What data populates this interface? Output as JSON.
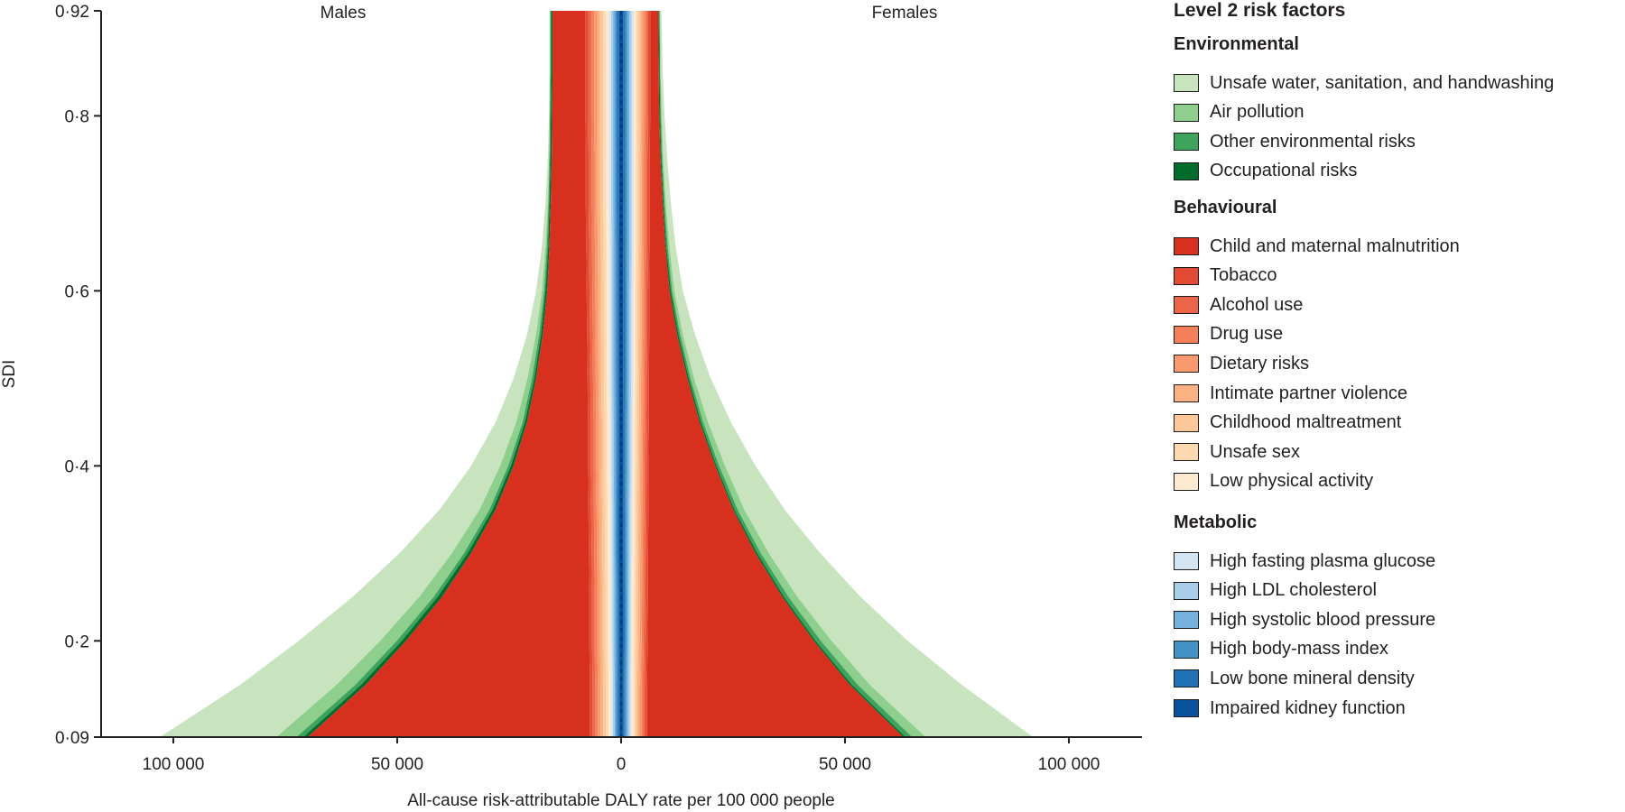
{
  "chart_data": {
    "type": "area",
    "subtype": "mirrored stacked area (population-pyramid style)",
    "left_panel_label": "Males",
    "right_panel_label": "Females",
    "xlabel": "All-cause risk-attributable DALY rate per 100 000 people",
    "ylabel": "SDI",
    "x_ticks": [
      "100 000",
      "50 000",
      "0",
      "50 000",
      "100 000"
    ],
    "x_tick_values": [
      -100000,
      -50000,
      0,
      50000,
      100000
    ],
    "xlim": [
      -113000,
      113000
    ],
    "y_ticks": [
      "0·09",
      "0·2",
      "0·4",
      "0·6",
      "0·8",
      "0·92"
    ],
    "y_tick_values": [
      0.09,
      0.2,
      0.4,
      0.6,
      0.8,
      0.92
    ],
    "ylim": [
      0.09,
      0.92
    ],
    "grid": false,
    "legend_position": "right",
    "sdi": [
      0.09,
      0.15,
      0.2,
      0.25,
      0.3,
      0.35,
      0.4,
      0.45,
      0.5,
      0.55,
      0.6,
      0.65,
      0.7,
      0.75,
      0.8,
      0.85,
      0.92
    ],
    "envelope_layers": {
      "note": "cumulative outer edges of grouped layers, DALY rate per 100 000",
      "males": {
        "metabolic_edge": [
          2200,
          2200,
          2300,
          2300,
          2400,
          2400,
          2500,
          2500,
          2600,
          2600,
          2600,
          2600,
          2700,
          2700,
          2700,
          2700,
          2700
        ],
        "behavioural_edge": [
          7000,
          7000,
          7100,
          7100,
          7200,
          7300,
          7400,
          7400,
          7500,
          7600,
          7700,
          7800,
          7900,
          7900,
          8000,
          8000,
          8000
        ],
        "malnutrition_edge": [
          70000,
          57000,
          48000,
          40000,
          33500,
          28000,
          24000,
          21000,
          19000,
          17500,
          16500,
          16000,
          15700,
          15500,
          15400,
          15300,
          15300
        ],
        "occupational_edge": [
          71000,
          58000,
          49000,
          41000,
          34300,
          28700,
          24600,
          21500,
          19400,
          17900,
          16900,
          16300,
          16000,
          15800,
          15700,
          15600,
          15600
        ],
        "other_env_edge": [
          72500,
          59300,
          50100,
          41900,
          35100,
          29400,
          25200,
          22000,
          19900,
          18300,
          17200,
          16600,
          16200,
          16000,
          15900,
          15800,
          15800
        ],
        "air_pollution_edge": [
          77000,
          63500,
          53800,
          45100,
          37800,
          31600,
          27000,
          23400,
          20900,
          19000,
          17700,
          16900,
          16400,
          16100,
          16000,
          15900,
          15900
        ],
        "water_edge": [
          103000,
          85000,
          72000,
          60000,
          49500,
          40500,
          33500,
          28000,
          24000,
          21000,
          19000,
          17700,
          16900,
          16400,
          16100,
          16000,
          16000
        ]
      },
      "females": {
        "metabolic_edge": [
          2300,
          2300,
          2400,
          2400,
          2500,
          2500,
          2600,
          2600,
          2700,
          2700,
          2700,
          2800,
          2800,
          2800,
          2800,
          2800,
          2800
        ],
        "behavioural_edge": [
          5800,
          5800,
          5900,
          6000,
          6000,
          6100,
          6100,
          6200,
          6200,
          6300,
          6300,
          6400,
          6400,
          6400,
          6500,
          6500,
          6500
        ],
        "malnutrition_edge": [
          63000,
          51000,
          43000,
          36000,
          30000,
          25000,
          21000,
          17500,
          14800,
          12500,
          10800,
          9900,
          9300,
          8800,
          8500,
          8400,
          8300
        ],
        "occupational_edge": [
          63500,
          51500,
          43400,
          36400,
          30400,
          25300,
          21300,
          17800,
          15100,
          12800,
          11100,
          10100,
          9500,
          9000,
          8700,
          8600,
          8500
        ],
        "other_env_edge": [
          65000,
          52800,
          44600,
          37400,
          31200,
          26000,
          21900,
          18300,
          15500,
          13200,
          11400,
          10400,
          9700,
          9200,
          8900,
          8700,
          8600
        ],
        "air_pollution_edge": [
          68000,
          55500,
          47000,
          39400,
          33000,
          27500,
          23200,
          19400,
          16300,
          13800,
          11900,
          10800,
          10000,
          9400,
          9100,
          8800,
          8700
        ],
        "water_edge": [
          92000,
          76000,
          64000,
          53500,
          44500,
          36500,
          30000,
          24500,
          20000,
          16500,
          13800,
          12200,
          11100,
          10300,
          9700,
          9300,
          9000
        ]
      }
    },
    "series": [
      {
        "name": "Unsafe water, sanitation, and handwashing",
        "group": "Environmental",
        "color": "#c7e4be"
      },
      {
        "name": "Air pollution",
        "group": "Environmental",
        "color": "#8fcf8d"
      },
      {
        "name": "Other environmental risks",
        "group": "Environmental",
        "color": "#3da35d"
      },
      {
        "name": "Occupational risks",
        "group": "Environmental",
        "color": "#006d2c"
      },
      {
        "name": "Child and maternal malnutrition",
        "group": "Behavioural",
        "color": "#d7301f"
      },
      {
        "name": "Tobacco",
        "group": "Behavioural",
        "color": "#e34a33"
      },
      {
        "name": "Alcohol use",
        "group": "Behavioural",
        "color": "#ec6548"
      },
      {
        "name": "Drug use",
        "group": "Behavioural",
        "color": "#f47f58"
      },
      {
        "name": "Dietary risks",
        "group": "Behavioural",
        "color": "#f89a6e"
      },
      {
        "name": "Intimate partner violence",
        "group": "Behavioural",
        "color": "#fbb283"
      },
      {
        "name": "Childhood maltreatment",
        "group": "Behavioural",
        "color": "#fcc89a"
      },
      {
        "name": "Unsafe sex",
        "group": "Behavioural",
        "color": "#fdd9b0"
      },
      {
        "name": "Low physical activity",
        "group": "Behavioural",
        "color": "#fee9d1"
      },
      {
        "name": "High fasting plasma glucose",
        "group": "Metabolic",
        "color": "#d3e5f3"
      },
      {
        "name": "High LDL cholesterol",
        "group": "Metabolic",
        "color": "#a9cfe8"
      },
      {
        "name": "High systolic blood pressure",
        "group": "Metabolic",
        "color": "#74b1dc"
      },
      {
        "name": "High body-mass index",
        "group": "Metabolic",
        "color": "#4292c6"
      },
      {
        "name": "Low bone mineral density",
        "group": "Metabolic",
        "color": "#2171b5"
      },
      {
        "name": "Impaired kidney function",
        "group": "Metabolic",
        "color": "#08519c"
      }
    ]
  },
  "legend": {
    "title": "Level 2 risk factors",
    "groups": [
      {
        "title": "Environmental",
        "items": [
          {
            "label": "Unsafe water, sanitation, and handwashing",
            "color": "#c7e4be"
          },
          {
            "label": "Air pollution",
            "color": "#8fcf8d"
          },
          {
            "label": "Other environmental risks",
            "color": "#3da35d"
          },
          {
            "label": "Occupational risks",
            "color": "#006d2c"
          }
        ]
      },
      {
        "title": "Behavioural",
        "items": [
          {
            "label": "Child and maternal malnutrition",
            "color": "#d7301f"
          },
          {
            "label": "Tobacco",
            "color": "#e34a33"
          },
          {
            "label": "Alcohol use",
            "color": "#ec6548"
          },
          {
            "label": "Drug use",
            "color": "#f47f58"
          },
          {
            "label": "Dietary risks",
            "color": "#f89a6e"
          },
          {
            "label": "Intimate partner violence",
            "color": "#fbb283"
          },
          {
            "label": "Childhood maltreatment",
            "color": "#fcc89a"
          },
          {
            "label": "Unsafe sex",
            "color": "#fdd9b0"
          },
          {
            "label": "Low physical activity",
            "color": "#fee9d1"
          }
        ]
      },
      {
        "title": "Metabolic",
        "items": [
          {
            "label": "High fasting plasma glucose",
            "color": "#d3e5f3"
          },
          {
            "label": "High LDL cholesterol",
            "color": "#a9cfe8"
          },
          {
            "label": "High systolic blood pressure",
            "color": "#74b1dc"
          },
          {
            "label": "High body-mass index",
            "color": "#4292c6"
          },
          {
            "label": "Low bone mineral density",
            "color": "#2171b5"
          },
          {
            "label": "Impaired kidney function",
            "color": "#08519c"
          }
        ]
      }
    ]
  }
}
